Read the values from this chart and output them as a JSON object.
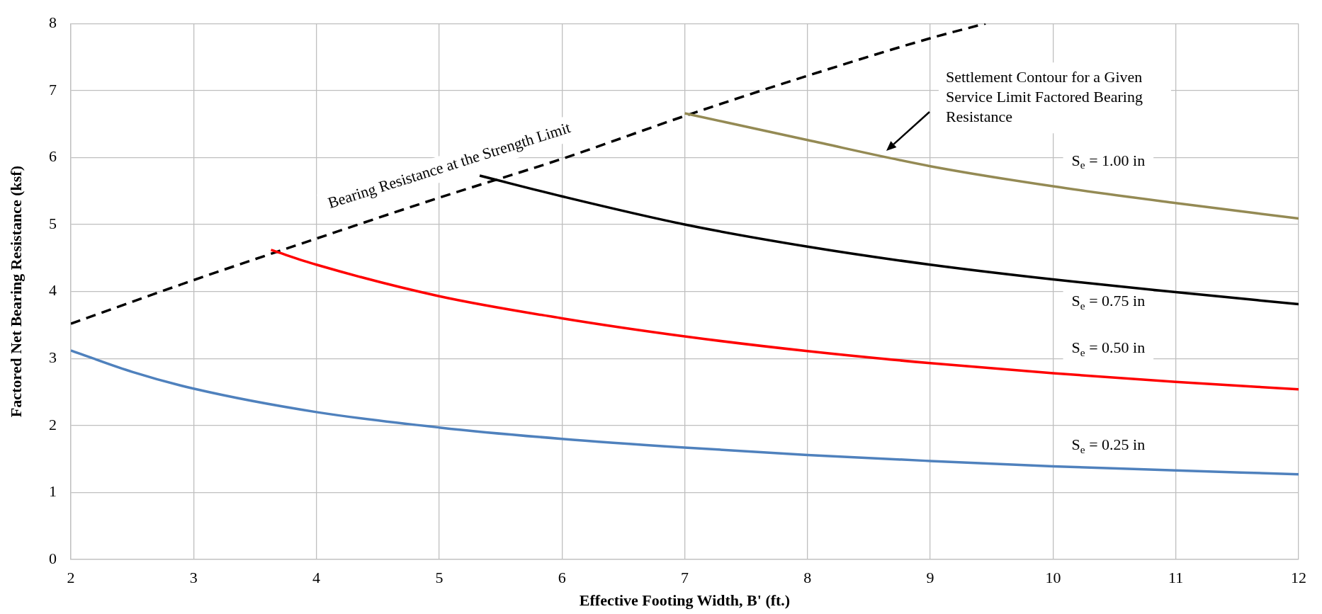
{
  "chart_data": {
    "type": "line",
    "xlabel": "Effective Footing Width, B' (ft.)",
    "ylabel": "Factored Net Bearing Resistance (ksf)",
    "xlim": [
      2,
      12
    ],
    "xticks": [
      2,
      3,
      4,
      5,
      6,
      7,
      8,
      9,
      10,
      11,
      12
    ],
    "ylim": [
      0,
      8
    ],
    "yticks": [
      0,
      1,
      2,
      3,
      4,
      5,
      6,
      7,
      8
    ],
    "grid": true,
    "marker": "none",
    "line_style": "solid",
    "series": [
      {
        "name": "S$_{e}$ = 0.25 in",
        "color": "#4f81bd",
        "x": [
          2,
          2.5,
          3,
          4,
          5,
          6,
          7,
          8,
          9,
          10,
          11,
          12
        ],
        "values": [
          3.12,
          2.8,
          2.55,
          2.2,
          1.97,
          1.8,
          1.67,
          1.56,
          1.47,
          1.39,
          1.33,
          1.27
        ]
      },
      {
        "name": "S$_{e}$ = 0.50 in",
        "color": "#ff0000",
        "x": [
          3.63,
          4,
          5,
          6,
          7,
          8,
          9,
          10,
          11,
          12
        ],
        "values": [
          4.62,
          4.4,
          3.93,
          3.6,
          3.33,
          3.11,
          2.93,
          2.78,
          2.65,
          2.54
        ]
      },
      {
        "name": "S$_{e}$ = 0.75 in",
        "color": "#000000",
        "x": [
          5.33,
          6,
          7,
          8,
          9,
          10,
          11,
          12
        ],
        "values": [
          5.73,
          5.42,
          5.0,
          4.67,
          4.4,
          4.18,
          3.99,
          3.81
        ]
      },
      {
        "name": "S$_{e}$ = 1.00 in",
        "color": "#948a54",
        "x": [
          7,
          8,
          9,
          10,
          11,
          12
        ],
        "values": [
          6.66,
          6.26,
          5.87,
          5.57,
          5.32,
          5.09
        ]
      },
      {
        "name": "Bearing Resistance at the Strength Limit",
        "color": "#000000",
        "line_style": "dashed",
        "x": [
          2,
          3,
          4,
          5,
          6,
          7,
          8,
          9,
          9.45
        ],
        "values": [
          3.52,
          4.17,
          4.79,
          5.4,
          5.98,
          6.62,
          7.22,
          7.78,
          8.0
        ]
      }
    ],
    "annotations": [
      "Settlement Contour for a Given Service Limit Factored Bearing Resistance"
    ]
  }
}
